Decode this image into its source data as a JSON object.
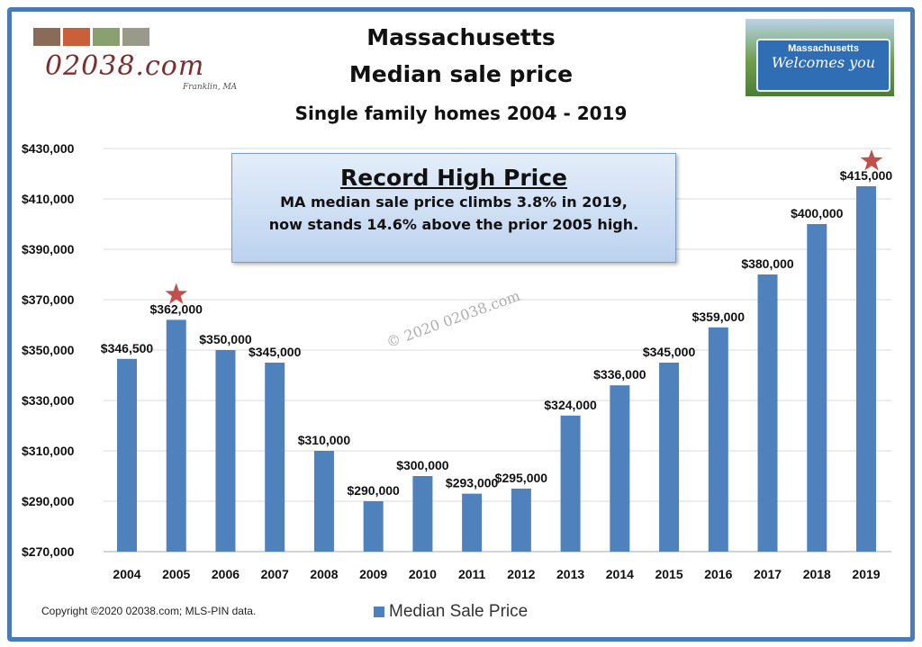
{
  "header": {
    "title_line1": "Massachusetts",
    "title_line2": "Median sale price",
    "subtitle": "Single family homes 2004 - 2019",
    "logo_text": "02038.com",
    "logo_subtext": "Franklin, MA",
    "sign_line1": "Massachusetts",
    "sign_line2": "Welcomes you"
  },
  "callout": {
    "heading": "Record High Price",
    "line1": "MA median sale price climbs 3.8% in 2019,",
    "line2": "now stands 14.6% above the prior 2005 high."
  },
  "watermark": "© 2020 02038.com",
  "footer": {
    "copyright": "Copyright ©2020 02038.com; MLS-PIN data."
  },
  "colors": {
    "bar": "#4f81bd",
    "star": "#c0504d",
    "frame": "#4a7ab8"
  },
  "chart_data": {
    "type": "bar",
    "title": "Massachusetts Median sale price",
    "subtitle": "Single family homes 2004 - 2019",
    "categories": [
      "2004",
      "2005",
      "2006",
      "2007",
      "2008",
      "2009",
      "2010",
      "2011",
      "2012",
      "2013",
      "2014",
      "2015",
      "2016",
      "2017",
      "2018",
      "2019"
    ],
    "series": [
      {
        "name": "Median Sale Price",
        "values": [
          346500,
          362000,
          350000,
          345000,
          310000,
          290000,
          300000,
          293000,
          295000,
          324000,
          336000,
          345000,
          359000,
          380000,
          400000,
          415000
        ]
      }
    ],
    "data_labels": [
      "$346,500",
      "$362,000",
      "$350,000",
      "$345,000",
      "$310,000",
      "$290,000",
      "$300,000",
      "$293,000",
      "$295,000",
      "$324,000",
      "$336,000",
      "$345,000",
      "$359,000",
      "$380,000",
      "$400,000",
      "$415,000"
    ],
    "ylim": [
      270000,
      430000
    ],
    "yticks": [
      "$270,000",
      "$290,000",
      "$310,000",
      "$330,000",
      "$350,000",
      "$370,000",
      "$390,000",
      "$410,000",
      "$430,000"
    ],
    "grid": true,
    "legend": "bottom",
    "star_markers": [
      "2005",
      "2019"
    ]
  }
}
